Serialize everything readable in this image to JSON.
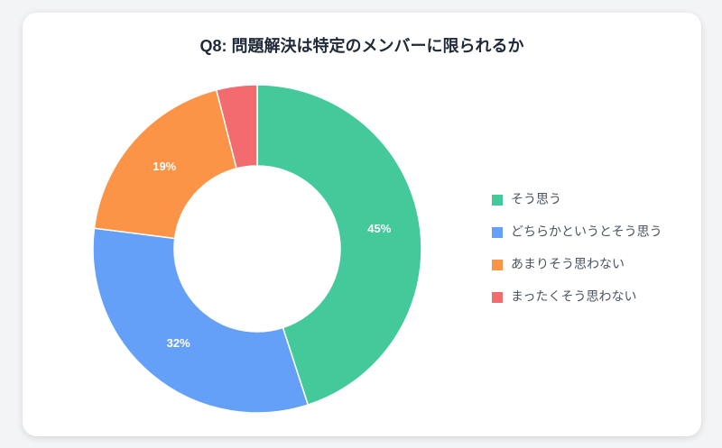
{
  "chart_data": {
    "type": "donut",
    "title": "Q8: 問題解決は特定のメンバーに限られるか",
    "categories": [
      "そう思う",
      "どちらかというとそう思う",
      "あまりそう思わない",
      "まったくそう思わない"
    ],
    "values": [
      45,
      32,
      19,
      4
    ],
    "value_labels": [
      "45%",
      "32%",
      "19%",
      null
    ],
    "colors": [
      "#43c99a",
      "#64a0f7",
      "#fb9447",
      "#f26b6e"
    ],
    "legend": "right"
  }
}
